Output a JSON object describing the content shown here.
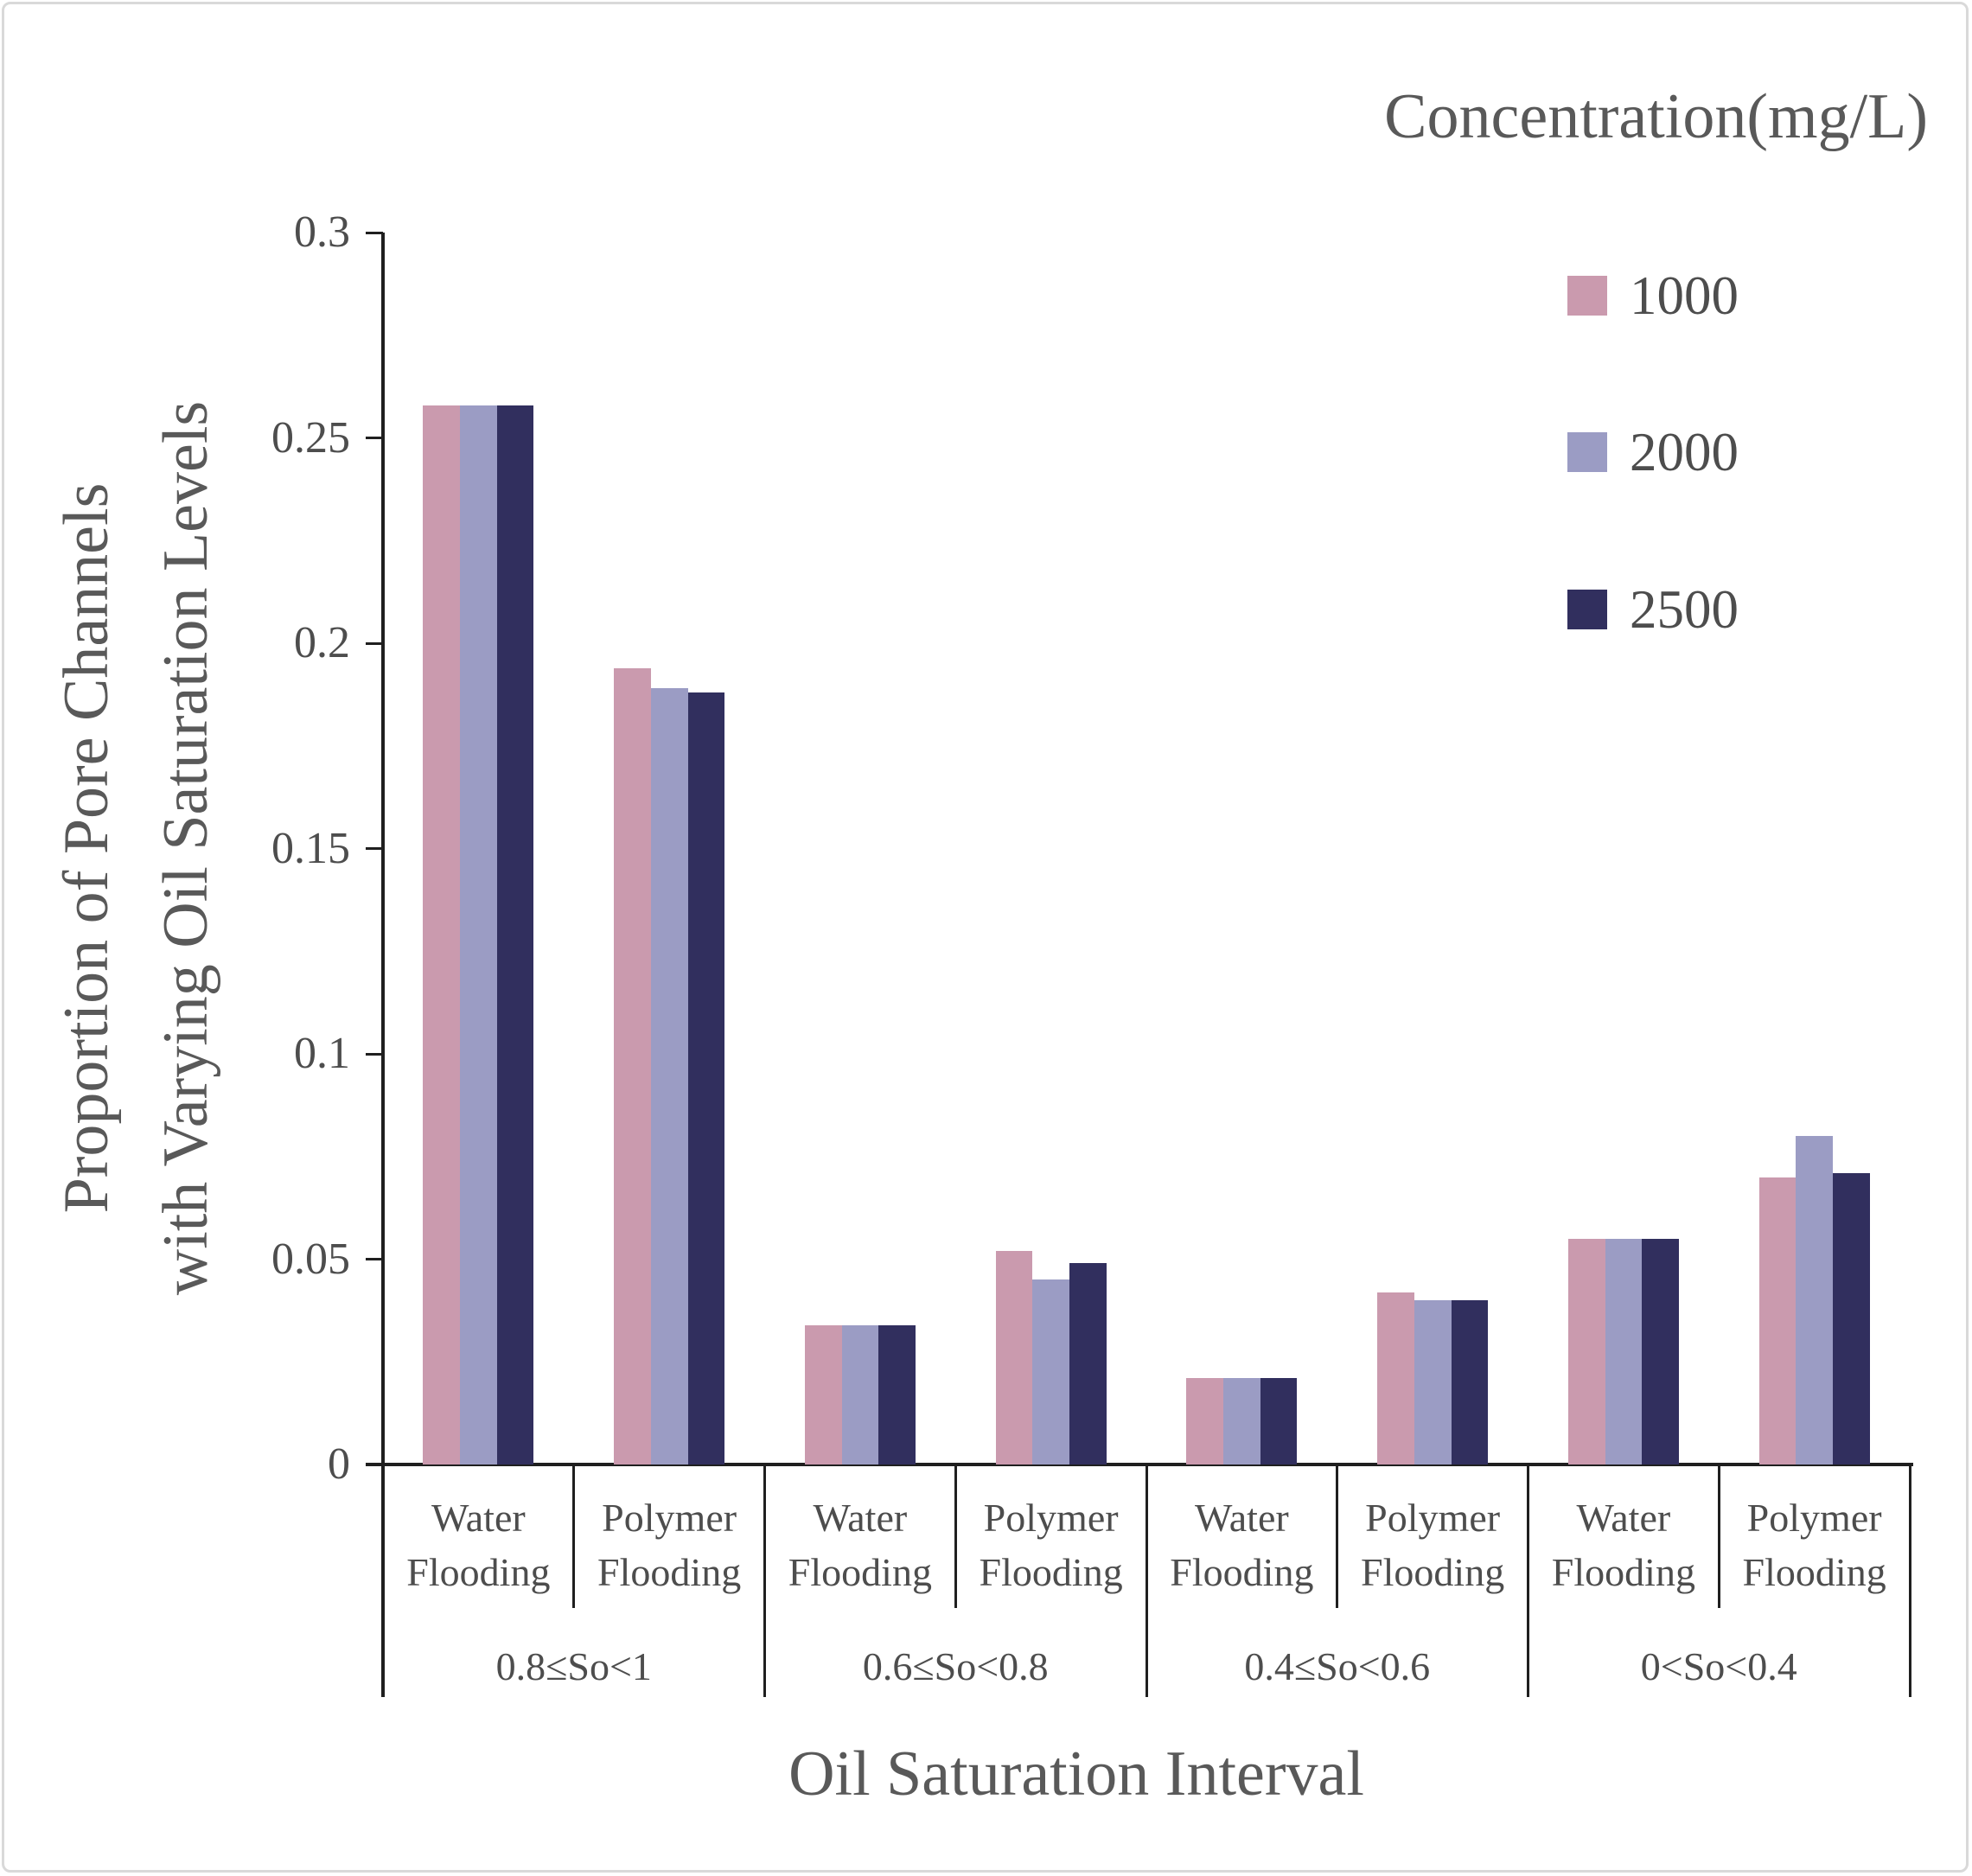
{
  "legend": {
    "title": "Concentration(mg/L)",
    "position": "top-right"
  },
  "chart_data": {
    "type": "bar",
    "title": "",
    "xlabel": "Oil Saturation Interval",
    "ylabel": "Proportion of Pore Channels with Varying Oil Saturation Levels",
    "ylabel_lines": [
      "Proportion of Pore Channels",
      "with Varying Oil Saturation Levels"
    ],
    "ylim": [
      0,
      0.3
    ],
    "yticks": [
      {
        "v": 0,
        "label": "0"
      },
      {
        "v": 0.05,
        "label": "0.05"
      },
      {
        "v": 0.1,
        "label": "0.1"
      },
      {
        "v": 0.15,
        "label": "0.15"
      },
      {
        "v": 0.2,
        "label": "0.2"
      },
      {
        "v": 0.25,
        "label": "0.25"
      },
      {
        "v": 0.3,
        "label": "0.3"
      }
    ],
    "grid": false,
    "intervals": [
      {
        "label": "0.8≤So<1"
      },
      {
        "label": "0.6≤So<0.8"
      },
      {
        "label": "0.4≤So<0.6"
      },
      {
        "label": "0<So<0.4"
      }
    ],
    "categories": [
      "Water Flooding",
      "Polymer Flooding",
      "Water Flooding",
      "Polymer Flooding",
      "Water Flooding",
      "Polymer Flooding",
      "Water Flooding",
      "Polymer Flooding"
    ],
    "series": [
      {
        "name": "1000",
        "color": "#ca9aae",
        "values": [
          0.258,
          0.194,
          0.034,
          0.052,
          0.021,
          0.042,
          0.055,
          0.07
        ]
      },
      {
        "name": "2000",
        "color": "#9b9cc4",
        "values": [
          0.258,
          0.189,
          0.034,
          0.045,
          0.021,
          0.04,
          0.055,
          0.08
        ]
      },
      {
        "name": "2500",
        "color": "#312f5e",
        "values": [
          0.258,
          0.188,
          0.034,
          0.049,
          0.021,
          0.04,
          0.055,
          0.071
        ]
      }
    ],
    "axis_color": "#1f1f1f",
    "text_color": "#4d4d4d"
  }
}
